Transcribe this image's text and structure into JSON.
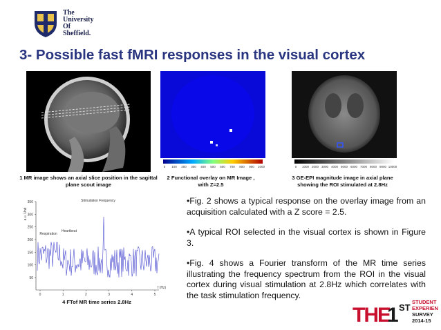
{
  "header": {
    "logo": [
      "The",
      "University",
      "Of",
      "Sheffield."
    ],
    "title": "3- Possible fast fMRI responses in the visual cortex"
  },
  "figures": [
    {
      "caption": "1 MR image shows an axial slice position in the sagittal plane scout image"
    },
    {
      "caption": "2 Functional overlay on MR Image , with Z=2.5",
      "colorbar": [
        0,
        100,
        200,
        300,
        400,
        500,
        600,
        700,
        800,
        900,
        1000
      ]
    },
    {
      "caption": "3  GE-EPI magnitude image in axial plane showing the ROI stimulated at 2.8Hz",
      "colorbar": [
        0,
        1000,
        2000,
        3000,
        4000,
        5000,
        6000,
        7000,
        8000,
        9000,
        10000
      ]
    },
    {
      "caption": "4 FTof MR time series 2.8Hz",
      "y_label": "a.u. Unit",
      "x_label": "f (Hz)",
      "yticks": [
        350,
        300,
        250,
        200,
        150,
        100,
        50
      ],
      "xticks": [
        0,
        1,
        2,
        3,
        4,
        5
      ],
      "annotations": [
        "Stimulation Frequency",
        "Heartbeat",
        "Respiration"
      ]
    }
  ],
  "bullets": [
    "•Fig. 2 shows a typical response on the overlay image from an acquisition calculated with a Z score = 2.5.",
    "•A typical ROI selected in the visual cortex is shown in Figure 3.",
    "•Fig. 4 shows a Fourier transform of the MR time series illustrating the frequency spectrum from the ROI in the visual cortex during visual stimulation at 2.8Hz which correlates with the task stimulation frequency."
  ],
  "footer": {
    "logo": [
      "THE",
      "1",
      "ST",
      "STUDENT",
      "EXPERIENCE",
      "SURVEY",
      "2014-15"
    ]
  }
}
